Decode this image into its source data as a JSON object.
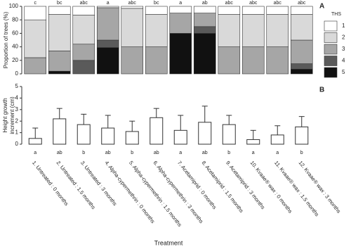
{
  "chart_data": [
    {
      "type": "stacked_bar",
      "panel": "A",
      "y_label": "Proportion of trees (%)",
      "legend_title": "THS",
      "ylim": [
        0,
        100
      ],
      "yticks": [
        0,
        20,
        40,
        60,
        80,
        100
      ],
      "letters": [
        "c",
        "bc",
        "abc",
        "a",
        "abc",
        "bc",
        "a",
        "ab",
        "abc",
        "abc",
        "abc",
        "abc"
      ],
      "series": [
        {
          "name": "5",
          "color": "#111111",
          "values": [
            0,
            4,
            0,
            39,
            0,
            0,
            60,
            60,
            0,
            0,
            0,
            7
          ]
        },
        {
          "name": "4",
          "color": "#5a5a5a",
          "values": [
            0,
            0,
            20,
            11,
            0,
            0,
            0,
            10,
            0,
            0,
            0,
            8
          ]
        },
        {
          "name": "3",
          "color": "#a6a6a6",
          "values": [
            24,
            30,
            24,
            48,
            40,
            40,
            30,
            20,
            40,
            40,
            40,
            35
          ]
        },
        {
          "name": "2",
          "color": "#d9d9d9",
          "values": [
            56,
            54,
            43,
            0,
            57,
            48,
            0,
            0,
            48,
            48,
            48,
            38
          ]
        },
        {
          "name": "1",
          "color": "#ffffff",
          "values": [
            20,
            12,
            13,
            2,
            3,
            12,
            10,
            10,
            12,
            12,
            12,
            12
          ]
        }
      ]
    },
    {
      "type": "bar_error",
      "panel": "B",
      "y_label": [
        "Height growth",
        "increment (cm)"
      ],
      "x_label": "Treatment",
      "ylim": [
        0,
        5
      ],
      "yticks": [
        0,
        1,
        2,
        3,
        4,
        5
      ],
      "categories": [
        "1. Untreated : 0 months",
        "2. Untreated : 1.5 months",
        "3. Untreated : 3 months",
        "4. Alpha-cypermethrin : 0 months",
        "5. Alpha-cypermethrin : 1.5 months",
        "6. Alpha-cypermethrin : 3 months",
        "7. Acetamiprid : 0 months",
        "8. Acetamiprid : 1.5 months",
        "9. Acetamiprid : 3 months",
        "10. Kvaae® wax : 0 months",
        "11. Kvaae® wax : 1.5 months",
        "12. Kvaae® wax : 3 months"
      ],
      "values": [
        0.5,
        2.2,
        1.7,
        1.4,
        1.1,
        2.3,
        1.2,
        1.9,
        1.7,
        0.4,
        0.8,
        1.5
      ],
      "errors": [
        0.9,
        0.9,
        0.9,
        1.1,
        0.9,
        0.8,
        1.3,
        1.4,
        0.8,
        0.8,
        0.8,
        0.9
      ],
      "letters": [
        "a",
        "ab",
        "b",
        "ab",
        "b",
        "ab",
        "a",
        "ab",
        "b",
        "a",
        "a",
        "b"
      ]
    }
  ]
}
